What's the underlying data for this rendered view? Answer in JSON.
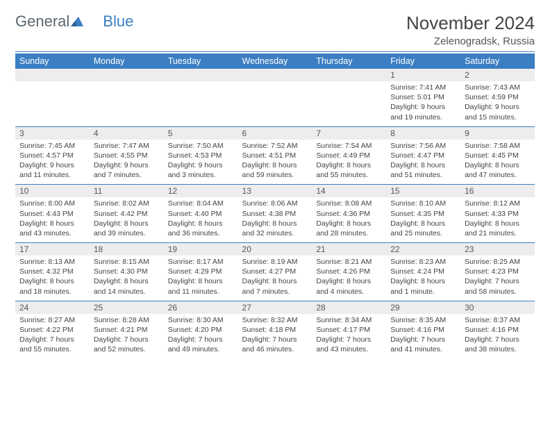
{
  "logo": {
    "text1": "General",
    "text2": "Blue"
  },
  "title": "November 2024",
  "location": "Zelenogradsk, Russia",
  "colors": {
    "accent": "#3b7ec2",
    "headerBg": "#3b7ec2",
    "numRowBg": "#ededed",
    "text": "#444444"
  },
  "dayHeaders": [
    "Sunday",
    "Monday",
    "Tuesday",
    "Wednesday",
    "Thursday",
    "Friday",
    "Saturday"
  ],
  "weeks": [
    {
      "nums": [
        "",
        "",
        "",
        "",
        "",
        "1",
        "2"
      ],
      "cells": [
        null,
        null,
        null,
        null,
        null,
        {
          "sunrise": "7:41 AM",
          "sunset": "5:01 PM",
          "dayH": "9",
          "dayM": "19"
        },
        {
          "sunrise": "7:43 AM",
          "sunset": "4:59 PM",
          "dayH": "9",
          "dayM": "15"
        }
      ]
    },
    {
      "nums": [
        "3",
        "4",
        "5",
        "6",
        "7",
        "8",
        "9"
      ],
      "cells": [
        {
          "sunrise": "7:45 AM",
          "sunset": "4:57 PM",
          "dayH": "9",
          "dayM": "11"
        },
        {
          "sunrise": "7:47 AM",
          "sunset": "4:55 PM",
          "dayH": "9",
          "dayM": "7"
        },
        {
          "sunrise": "7:50 AM",
          "sunset": "4:53 PM",
          "dayH": "9",
          "dayM": "3"
        },
        {
          "sunrise": "7:52 AM",
          "sunset": "4:51 PM",
          "dayH": "8",
          "dayM": "59"
        },
        {
          "sunrise": "7:54 AM",
          "sunset": "4:49 PM",
          "dayH": "8",
          "dayM": "55"
        },
        {
          "sunrise": "7:56 AM",
          "sunset": "4:47 PM",
          "dayH": "8",
          "dayM": "51"
        },
        {
          "sunrise": "7:58 AM",
          "sunset": "4:45 PM",
          "dayH": "8",
          "dayM": "47"
        }
      ]
    },
    {
      "nums": [
        "10",
        "11",
        "12",
        "13",
        "14",
        "15",
        "16"
      ],
      "cells": [
        {
          "sunrise": "8:00 AM",
          "sunset": "4:43 PM",
          "dayH": "8",
          "dayM": "43"
        },
        {
          "sunrise": "8:02 AM",
          "sunset": "4:42 PM",
          "dayH": "8",
          "dayM": "39"
        },
        {
          "sunrise": "8:04 AM",
          "sunset": "4:40 PM",
          "dayH": "8",
          "dayM": "36"
        },
        {
          "sunrise": "8:06 AM",
          "sunset": "4:38 PM",
          "dayH": "8",
          "dayM": "32"
        },
        {
          "sunrise": "8:08 AM",
          "sunset": "4:36 PM",
          "dayH": "8",
          "dayM": "28"
        },
        {
          "sunrise": "8:10 AM",
          "sunset": "4:35 PM",
          "dayH": "8",
          "dayM": "25"
        },
        {
          "sunrise": "8:12 AM",
          "sunset": "4:33 PM",
          "dayH": "8",
          "dayM": "21"
        }
      ]
    },
    {
      "nums": [
        "17",
        "18",
        "19",
        "20",
        "21",
        "22",
        "23"
      ],
      "cells": [
        {
          "sunrise": "8:13 AM",
          "sunset": "4:32 PM",
          "dayH": "8",
          "dayM": "18"
        },
        {
          "sunrise": "8:15 AM",
          "sunset": "4:30 PM",
          "dayH": "8",
          "dayM": "14"
        },
        {
          "sunrise": "8:17 AM",
          "sunset": "4:29 PM",
          "dayH": "8",
          "dayM": "11"
        },
        {
          "sunrise": "8:19 AM",
          "sunset": "4:27 PM",
          "dayH": "8",
          "dayM": "7"
        },
        {
          "sunrise": "8:21 AM",
          "sunset": "4:26 PM",
          "dayH": "8",
          "dayM": "4"
        },
        {
          "sunrise": "8:23 AM",
          "sunset": "4:24 PM",
          "dayH": "8",
          "dayM": "1",
          "unit": "minute"
        },
        {
          "sunrise": "8:25 AM",
          "sunset": "4:23 PM",
          "dayH": "7",
          "dayM": "58"
        }
      ]
    },
    {
      "nums": [
        "24",
        "25",
        "26",
        "27",
        "28",
        "29",
        "30"
      ],
      "cells": [
        {
          "sunrise": "8:27 AM",
          "sunset": "4:22 PM",
          "dayH": "7",
          "dayM": "55"
        },
        {
          "sunrise": "8:28 AM",
          "sunset": "4:21 PM",
          "dayH": "7",
          "dayM": "52"
        },
        {
          "sunrise": "8:30 AM",
          "sunset": "4:20 PM",
          "dayH": "7",
          "dayM": "49"
        },
        {
          "sunrise": "8:32 AM",
          "sunset": "4:18 PM",
          "dayH": "7",
          "dayM": "46"
        },
        {
          "sunrise": "8:34 AM",
          "sunset": "4:17 PM",
          "dayH": "7",
          "dayM": "43"
        },
        {
          "sunrise": "8:35 AM",
          "sunset": "4:16 PM",
          "dayH": "7",
          "dayM": "41"
        },
        {
          "sunrise": "8:37 AM",
          "sunset": "4:16 PM",
          "dayH": "7",
          "dayM": "38"
        }
      ]
    }
  ]
}
